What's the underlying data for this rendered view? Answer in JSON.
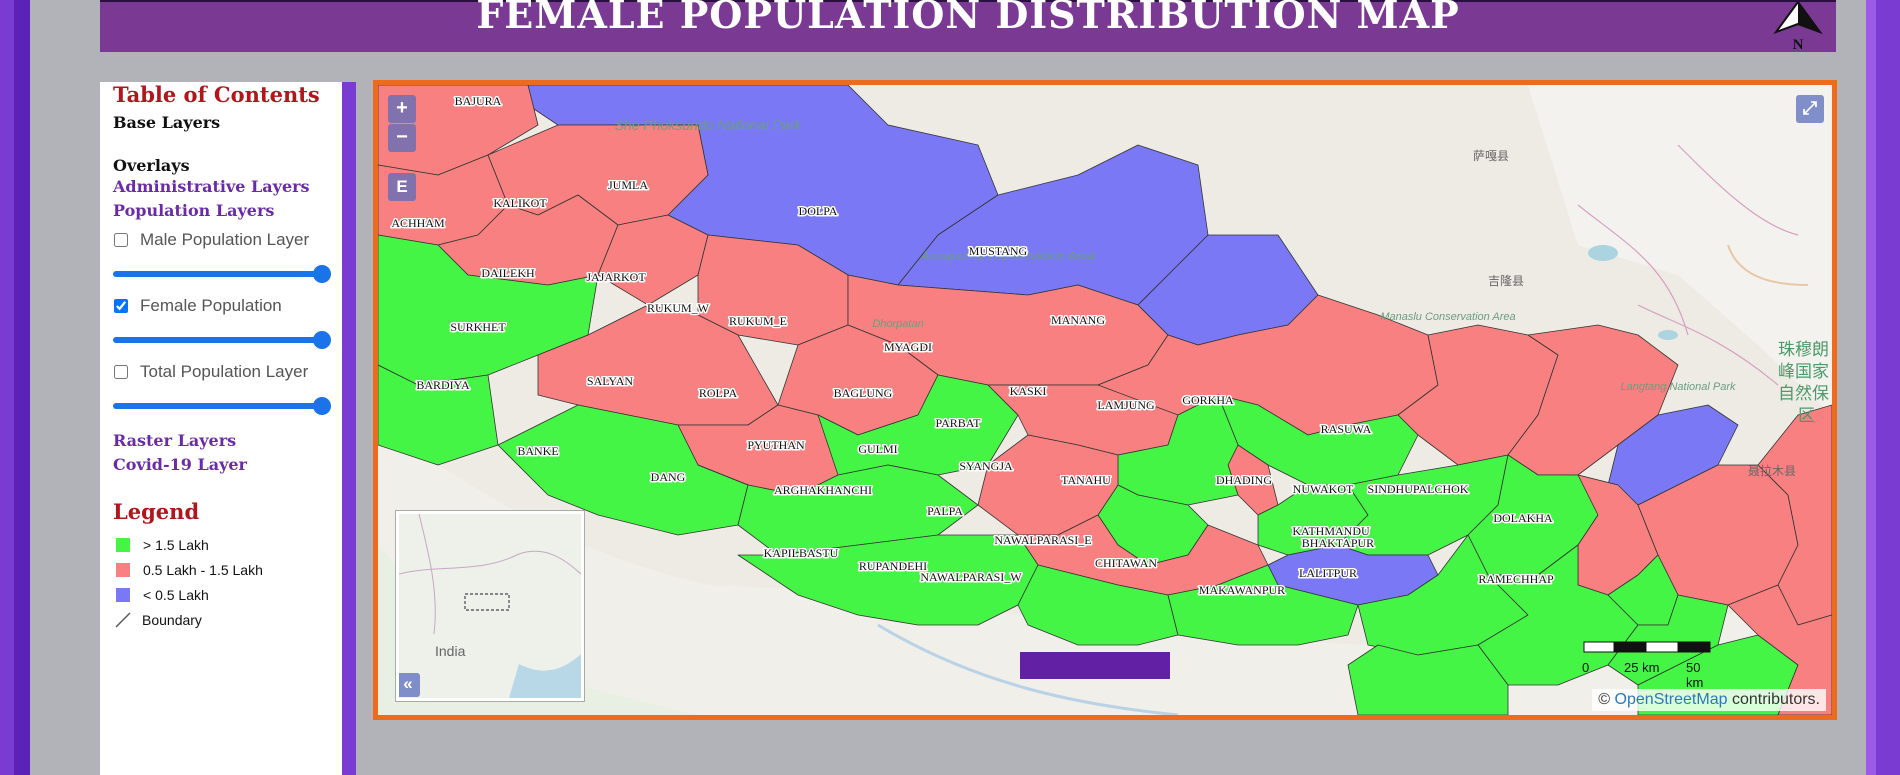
{
  "header": {
    "title": "FEMALE POPULATION DISTRIBUTION MAP",
    "north_label": "N"
  },
  "toc": {
    "title": "Table of Contents",
    "base_layers": "Base Layers",
    "overlays": "Overlays",
    "admin_layers": "Administrative Layers",
    "population_layers": "Population Layers",
    "layers": [
      {
        "label": "Male Population Layer",
        "checked": false,
        "opacity": 1.0
      },
      {
        "label": "Female Population",
        "checked": true,
        "opacity": 1.0
      },
      {
        "label": "Total Population Layer",
        "checked": false,
        "opacity": 1.0
      }
    ],
    "raster_layers": "Raster Layers",
    "covid_layer": "Covid-19 Layer"
  },
  "legend": {
    "title": "Legend",
    "items": [
      {
        "label": "> 1.5 Lakh",
        "color": "#45f545"
      },
      {
        "label": "0.5 Lakh - 1.5 Lakh",
        "color": "#f88080"
      },
      {
        "label": "< 0.5 Lakh",
        "color": "#7a78f5"
      },
      {
        "label": "Boundary",
        "symbol": "line"
      }
    ]
  },
  "map": {
    "controls": {
      "zoom_in": "+",
      "zoom_out": "−",
      "extent": "E",
      "fullscreen": "⤢",
      "collapse": "«"
    },
    "overview_label": "India",
    "scale": {
      "ticks": [
        "0",
        "25 km",
        "50 km"
      ]
    },
    "attribution": {
      "symbol": "©",
      "link": "OpenStreetMap",
      "suffix": "contributors."
    },
    "background_labels": [
      "She Phoksundo National Park",
      "Annapurna Conservation Area",
      "Manaslu Conservation Area",
      "Langtang National Park",
      "Dhorpatan"
    ],
    "cjk_labels": [
      "萨嘎县",
      "吉隆县",
      "聂拉木县",
      "珠穆朗",
      "峰国家",
      "自然保",
      "区"
    ],
    "districts": [
      "BAJURA",
      "KALIKOT",
      "JUMLA",
      "ACHHAM",
      "DOLPA",
      "MUSTANG",
      "DAILEKH",
      "JAJARKOT",
      "RUKUM_W",
      "RUKUM_E",
      "MANANG",
      "SURKHET",
      "MYAGDI",
      "SALYAN",
      "BARDIYA",
      "ROLPA",
      "BAGLUNG",
      "KASKI",
      "LAMJUNG",
      "GORKHA",
      "PARBAT",
      "RASUWA",
      "BANKE",
      "PYUTHAN",
      "GULMI",
      "SYANGJA",
      "DANG",
      "TANAHU",
      "DHADING",
      "NUWAKOT",
      "SINDHUPALCHOK",
      "ARGHAKHANCHI",
      "PALPA",
      "DOLAKHA",
      "NAWALPARASI_E",
      "KATHMANDU",
      "BHAKTAPUR",
      "KAPILBASTU",
      "RUPANDEHI",
      "CHITAWAN",
      "LALITPUR",
      "NAWALPARASI_W",
      "MAKAWANPUR",
      "RAMECHHAP"
    ]
  }
}
